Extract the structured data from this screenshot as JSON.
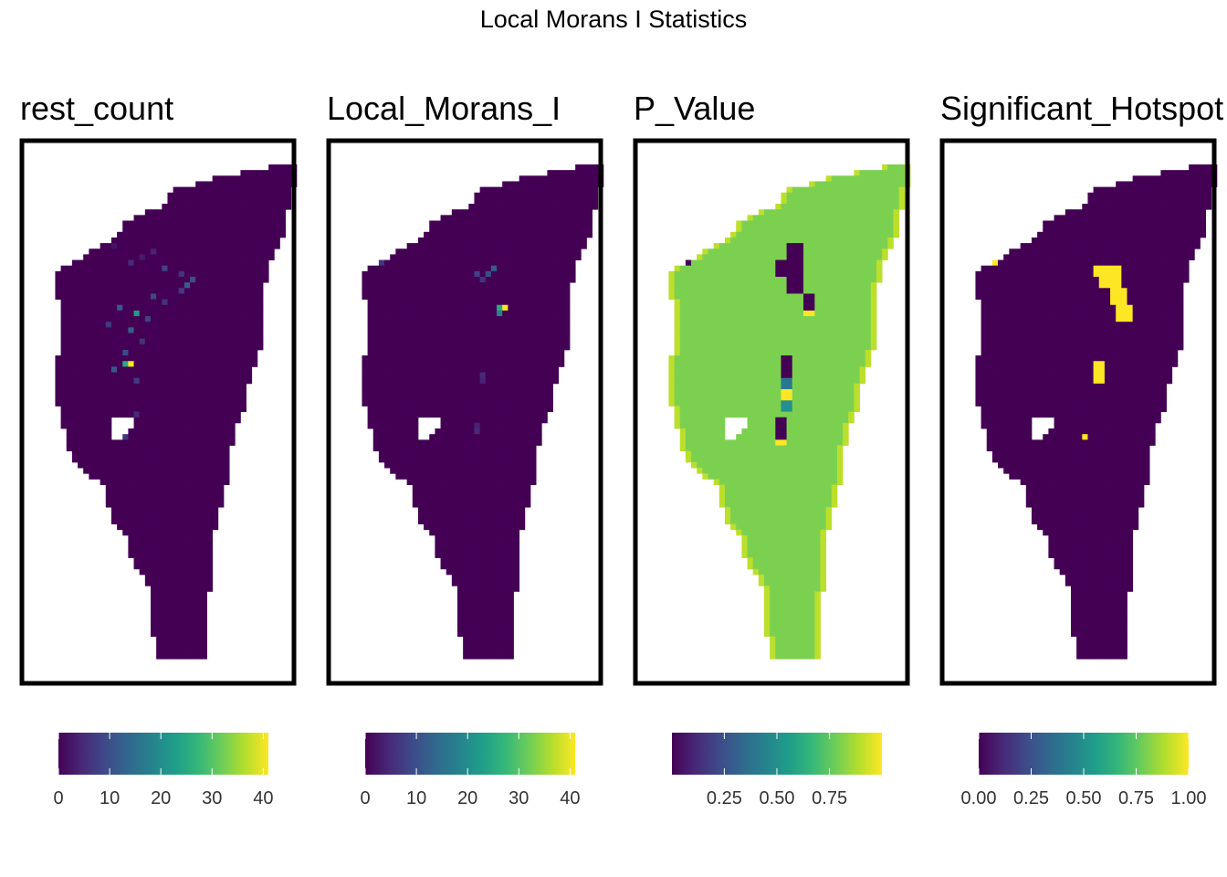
{
  "figure": {
    "title": "Local Morans I Statistics"
  },
  "colors": {
    "viridis": [
      "#440154",
      "#482878",
      "#3E4A89",
      "#31688E",
      "#26828E",
      "#1F9E89",
      "#35B779",
      "#6DCD59",
      "#B4DE2C",
      "#FDE725"
    ],
    "frame": "#000000",
    "background": "#ffffff"
  },
  "chart_data": [
    {
      "type": "heatmap",
      "title": "rest_count",
      "legend": {
        "position": "bottom",
        "min": 0,
        "max": 41,
        "ticks": [
          0,
          10,
          20,
          30,
          40
        ],
        "tick_labels": [
          "0",
          "10",
          "20",
          "30",
          "40"
        ]
      },
      "background_value": 0,
      "highlights": [
        {
          "row": 14,
          "col": 13,
          "value": 2
        },
        {
          "row": 15,
          "col": 20,
          "value": 4
        },
        {
          "row": 16,
          "col": 18,
          "value": 3
        },
        {
          "row": 17,
          "col": 16,
          "value": 5
        },
        {
          "row": 18,
          "col": 22,
          "value": 8
        },
        {
          "row": 19,
          "col": 25,
          "value": 6
        },
        {
          "row": 20,
          "col": 27,
          "value": 10
        },
        {
          "row": 21,
          "col": 26,
          "value": 12
        },
        {
          "row": 22,
          "col": 25,
          "value": 7
        },
        {
          "row": 23,
          "col": 20,
          "value": 9
        },
        {
          "row": 24,
          "col": 22,
          "value": 6
        },
        {
          "row": 25,
          "col": 14,
          "value": 11
        },
        {
          "row": 26,
          "col": 17,
          "value": 23
        },
        {
          "row": 27,
          "col": 19,
          "value": 8
        },
        {
          "row": 28,
          "col": 12,
          "value": 7
        },
        {
          "row": 29,
          "col": 16,
          "value": 12
        },
        {
          "row": 31,
          "col": 18,
          "value": 6
        },
        {
          "row": 33,
          "col": 15,
          "value": 9
        },
        {
          "row": 35,
          "col": 15,
          "value": 25
        },
        {
          "row": 35,
          "col": 16,
          "value": 41
        },
        {
          "row": 36,
          "col": 13,
          "value": 11
        },
        {
          "row": 38,
          "col": 17,
          "value": 7
        },
        {
          "row": 44,
          "col": 17,
          "value": 5
        },
        {
          "row": 48,
          "col": 15,
          "value": 6
        }
      ]
    },
    {
      "type": "heatmap",
      "title": "Local_Morans_I",
      "legend": {
        "position": "bottom",
        "min": 0,
        "max": 41,
        "ticks": [
          0,
          10,
          20,
          30,
          40
        ],
        "tick_labels": [
          "0",
          "10",
          "20",
          "30",
          "40"
        ]
      },
      "background_value": 0,
      "highlights": [
        {
          "row": 17,
          "col": 5,
          "value": 8
        },
        {
          "row": 17,
          "col": 6,
          "value": 6
        },
        {
          "row": 18,
          "col": 26,
          "value": 12
        },
        {
          "row": 19,
          "col": 25,
          "value": 10
        },
        {
          "row": 19,
          "col": 23,
          "value": 8
        },
        {
          "row": 20,
          "col": 24,
          "value": 6
        },
        {
          "row": 25,
          "col": 27,
          "value": 25
        },
        {
          "row": 25,
          "col": 28,
          "value": 41
        },
        {
          "row": 26,
          "col": 27,
          "value": 18
        },
        {
          "row": 37,
          "col": 24,
          "value": 5
        },
        {
          "row": 38,
          "col": 24,
          "value": 4
        },
        {
          "row": 46,
          "col": 23,
          "value": 4
        },
        {
          "row": 47,
          "col": 23,
          "value": 5
        }
      ]
    },
    {
      "type": "heatmap",
      "title": "P_Value",
      "legend": {
        "position": "bottom",
        "min": 0.001,
        "max": 0.999,
        "ticks": [
          0.25,
          0.5,
          0.75
        ],
        "tick_labels": [
          "0.25",
          "0.50",
          "0.75"
        ]
      },
      "background_value": 0.8,
      "edge_value": 0.9,
      "regions": [
        {
          "rows": [
            16,
            17
          ],
          "cols": [
            3,
            6
          ],
          "value": 0.001
        },
        {
          "rows": [
            14,
            22
          ],
          "cols": [
            24,
            26
          ],
          "value": 0.001
        },
        {
          "rows": [
            17,
            19
          ],
          "cols": [
            22,
            23
          ],
          "value": 0.001
        },
        {
          "rows": [
            23,
            25
          ],
          "cols": [
            27,
            28
          ],
          "value": 0.001
        },
        {
          "rows": [
            26,
            26
          ],
          "cols": [
            27,
            28
          ],
          "value": 0.999
        },
        {
          "rows": [
            34,
            37
          ],
          "cols": [
            23,
            24
          ],
          "value": 0.001
        },
        {
          "rows": [
            38,
            39
          ],
          "cols": [
            23,
            24
          ],
          "value": 0.4
        },
        {
          "rows": [
            40,
            41
          ],
          "cols": [
            23,
            24
          ],
          "value": 0.999
        },
        {
          "rows": [
            42,
            43
          ],
          "cols": [
            23,
            24
          ],
          "value": 0.5
        },
        {
          "rows": [
            45,
            48
          ],
          "cols": [
            22,
            23
          ],
          "value": 0.001
        },
        {
          "rows": [
            49,
            49
          ],
          "cols": [
            22,
            23
          ],
          "value": 0.999
        }
      ]
    },
    {
      "type": "heatmap",
      "title": "Significant_Hotspot",
      "legend": {
        "position": "bottom",
        "min": 0,
        "max": 1,
        "ticks": [
          0,
          0.25,
          0.5,
          0.75,
          1
        ],
        "tick_labels": [
          "0.00",
          "0.25",
          "0.50",
          "0.75",
          "1.00"
        ]
      },
      "background_value": 0,
      "regions": [
        {
          "rows": [
            16,
            17
          ],
          "cols": [
            4,
            6
          ],
          "value": 1
        },
        {
          "rows": [
            18,
            19
          ],
          "cols": [
            24,
            28
          ],
          "value": 1
        },
        {
          "rows": [
            20,
            21
          ],
          "cols": [
            25,
            28
          ],
          "value": 1
        },
        {
          "rows": [
            22,
            24
          ],
          "cols": [
            27,
            29
          ],
          "value": 1
        },
        {
          "rows": [
            25,
            27
          ],
          "cols": [
            28,
            30
          ],
          "value": 1
        },
        {
          "rows": [
            35,
            38
          ],
          "cols": [
            24,
            25
          ],
          "value": 1
        },
        {
          "rows": [
            48,
            48
          ],
          "cols": [
            22,
            22
          ],
          "value": 1
        }
      ]
    }
  ]
}
